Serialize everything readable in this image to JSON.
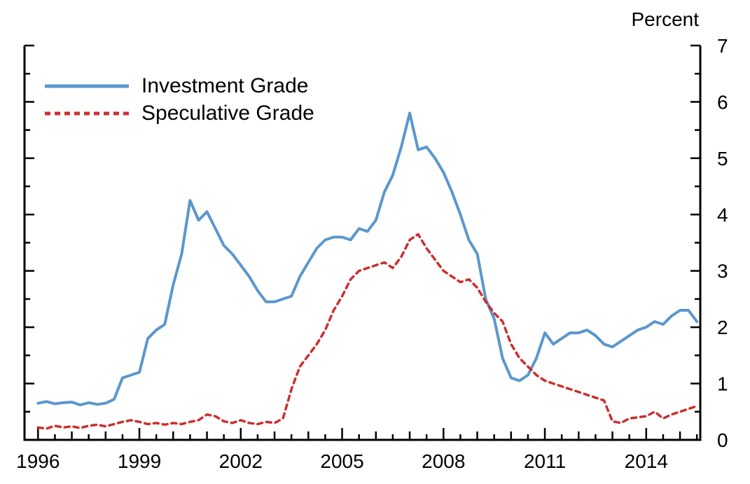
{
  "chart": {
    "unit_label": "Percent",
    "legend": [
      {
        "label": "Investment Grade",
        "color": "#5b97cd",
        "style": "solid"
      },
      {
        "label": "Speculative Grade",
        "color": "#cc2f2f",
        "style": "dashed"
      }
    ]
  },
  "chart_data": {
    "type": "line",
    "title": "",
    "ylabel": "Percent",
    "xlabel": "",
    "xlim": [
      1995.6,
      2015.6
    ],
    "ylim": [
      0,
      7
    ],
    "x_ticks": [
      1996,
      1999,
      2002,
      2005,
      2008,
      2011,
      2014
    ],
    "y_ticks": [
      0,
      1,
      2,
      3,
      4,
      5,
      6,
      7
    ],
    "grid": false,
    "legend_position": "top-left-inside",
    "x": [
      1996,
      1996.25,
      1996.5,
      1996.75,
      1997,
      1997.25,
      1997.5,
      1997.75,
      1998,
      1998.25,
      1998.5,
      1998.75,
      1999,
      1999.25,
      1999.5,
      1999.75,
      2000,
      2000.25,
      2000.5,
      2000.75,
      2001,
      2001.25,
      2001.5,
      2001.75,
      2002,
      2002.25,
      2002.5,
      2002.75,
      2003,
      2003.25,
      2003.5,
      2003.75,
      2004,
      2004.25,
      2004.5,
      2004.75,
      2005,
      2005.25,
      2005.5,
      2005.75,
      2006,
      2006.25,
      2006.5,
      2006.75,
      2007,
      2007.25,
      2007.5,
      2007.75,
      2008,
      2008.25,
      2008.5,
      2008.75,
      2009,
      2009.25,
      2009.5,
      2009.75,
      2010,
      2010.25,
      2010.5,
      2010.75,
      2011,
      2011.25,
      2011.5,
      2011.75,
      2012,
      2012.25,
      2012.5,
      2012.75,
      2013,
      2013.25,
      2013.5,
      2013.75,
      2014,
      2014.25,
      2014.5,
      2014.75,
      2015,
      2015.25,
      2015.5
    ],
    "series": [
      {
        "name": "Investment Grade",
        "color": "#5b97cd",
        "line_style": "solid",
        "values": [
          0.65,
          0.68,
          0.64,
          0.66,
          0.67,
          0.62,
          0.66,
          0.63,
          0.65,
          0.72,
          1.1,
          1.15,
          1.2,
          1.8,
          1.95,
          2.05,
          2.75,
          3.3,
          4.25,
          3.9,
          4.05,
          3.75,
          3.45,
          3.3,
          3.1,
          2.9,
          2.65,
          2.45,
          2.45,
          2.5,
          2.55,
          2.9,
          3.15,
          3.4,
          3.55,
          3.6,
          3.6,
          3.55,
          3.75,
          3.7,
          3.9,
          4.4,
          4.7,
          5.2,
          5.8,
          5.15,
          5.2,
          5.0,
          4.75,
          4.4,
          4.0,
          3.55,
          3.3,
          2.5,
          2.15,
          1.45,
          1.1,
          1.05,
          1.15,
          1.45,
          1.9,
          1.7,
          1.8,
          1.9,
          1.9,
          1.95,
          1.85,
          1.7,
          1.65,
          1.75,
          1.85,
          1.95,
          2.0,
          2.1,
          2.05,
          2.2,
          2.3,
          2.3,
          2.1
        ]
      },
      {
        "name": "Speculative Grade",
        "color": "#cc2f2f",
        "line_style": "dashed",
        "values": [
          0.22,
          0.2,
          0.25,
          0.22,
          0.24,
          0.21,
          0.25,
          0.27,
          0.24,
          0.28,
          0.32,
          0.35,
          0.32,
          0.28,
          0.3,
          0.27,
          0.3,
          0.28,
          0.32,
          0.35,
          0.45,
          0.42,
          0.33,
          0.3,
          0.35,
          0.3,
          0.28,
          0.32,
          0.3,
          0.38,
          0.9,
          1.3,
          1.5,
          1.7,
          1.95,
          2.3,
          2.55,
          2.85,
          3.0,
          3.05,
          3.1,
          3.15,
          3.05,
          3.25,
          3.55,
          3.65,
          3.4,
          3.2,
          3.0,
          2.9,
          2.8,
          2.85,
          2.7,
          2.45,
          2.25,
          2.1,
          1.7,
          1.45,
          1.3,
          1.15,
          1.05,
          1.0,
          0.95,
          0.9,
          0.85,
          0.8,
          0.75,
          0.7,
          0.33,
          0.3,
          0.38,
          0.4,
          0.42,
          0.5,
          0.38,
          0.45,
          0.5,
          0.55,
          0.6
        ]
      }
    ]
  }
}
